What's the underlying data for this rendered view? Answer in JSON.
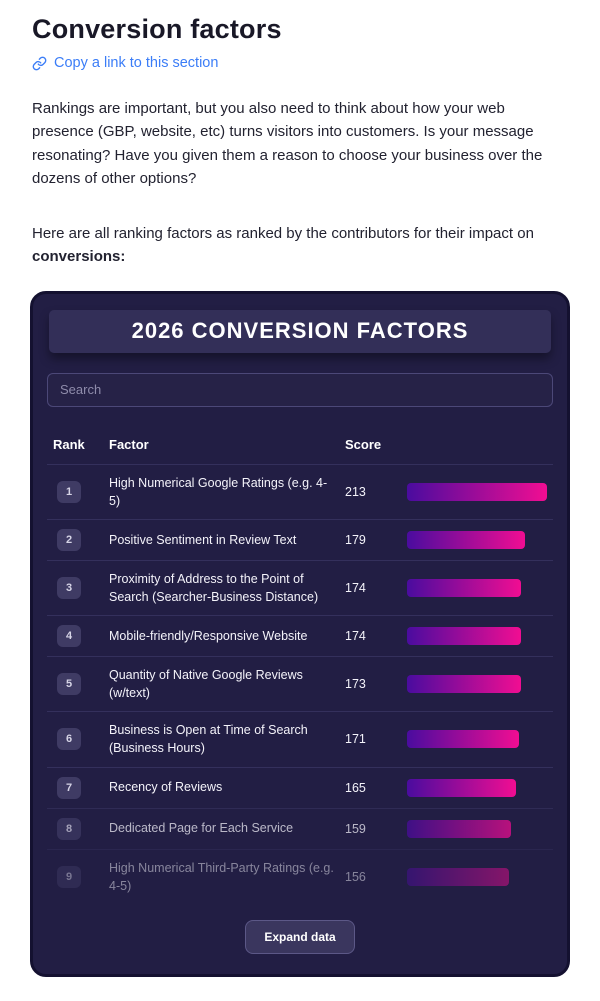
{
  "page": {
    "title": "Conversion factors",
    "copy_link_label": "Copy a link to this section",
    "paragraph1": "Rankings are important, but you also need to think about how your web presence (GBP, website, etc) turns visitors into customers. Is your message resonating? Have you given them a reason to choose your business over the dozens of other options?",
    "paragraph2_prefix": "Here are all ranking factors as ranked by the contributors for their impact on ",
    "paragraph2_bold": "conversions:"
  },
  "widget": {
    "title": "2026 CONVERSION FACTORS",
    "search_placeholder": "Search",
    "columns": {
      "rank": "Rank",
      "factor": "Factor",
      "score": "Score"
    },
    "expand_label": "Expand data",
    "max_score": 213,
    "rows": [
      {
        "rank": "1",
        "factor": "High Numerical Google Ratings (e.g. 4-5)",
        "score": 213
      },
      {
        "rank": "2",
        "factor": "Positive Sentiment in Review Text",
        "score": 179
      },
      {
        "rank": "3",
        "factor": "Proximity of Address to the Point of Search (Searcher-Business Distance)",
        "score": 174
      },
      {
        "rank": "4",
        "factor": "Mobile-friendly/Responsive Website",
        "score": 174
      },
      {
        "rank": "5",
        "factor": "Quantity of Native Google Reviews (w/text)",
        "score": 173
      },
      {
        "rank": "6",
        "factor": "Business is Open at Time of Search (Business Hours)",
        "score": 171
      },
      {
        "rank": "7",
        "factor": "Recency of Reviews",
        "score": 165
      },
      {
        "rank": "8",
        "factor": "Dedicated Page for Each Service",
        "score": 159
      },
      {
        "rank": "9",
        "factor": "High Numerical Third-Party Ratings (e.g. 4-5)",
        "score": 156
      }
    ]
  },
  "colors": {
    "link": "#3b7df7",
    "card_bg": "#221e44",
    "card_edge": "#141130",
    "panel_bg": "#332f58",
    "badge_bg": "#3f3b64",
    "badge_text": "#d6d4e6",
    "divider": "#34305c",
    "text_light": "#f4f3fa",
    "muted": "#8f8cab",
    "bar_start": "#4a0c9f",
    "bar_end": "#f10d92",
    "search_border": "#4c4878"
  },
  "chart_data": {
    "type": "bar",
    "orientation": "horizontal",
    "title": "2026 CONVERSION FACTORS",
    "categories": [
      "High Numerical Google Ratings (e.g. 4-5)",
      "Positive Sentiment in Review Text",
      "Proximity of Address to the Point of Search (Searcher-Business Distance)",
      "Mobile-friendly/Responsive Website",
      "Quantity of Native Google Reviews (w/text)",
      "Business is Open at Time of Search (Business Hours)",
      "Recency of Reviews",
      "Dedicated Page for Each Service",
      "High Numerical Third-Party Ratings (e.g. 4-5)"
    ],
    "values": [
      213,
      179,
      174,
      174,
      173,
      171,
      165,
      159,
      156
    ],
    "xlabel": "Score",
    "ylabel": "Factor",
    "xlim": [
      0,
      213
    ],
    "legend": false,
    "grid": false
  }
}
